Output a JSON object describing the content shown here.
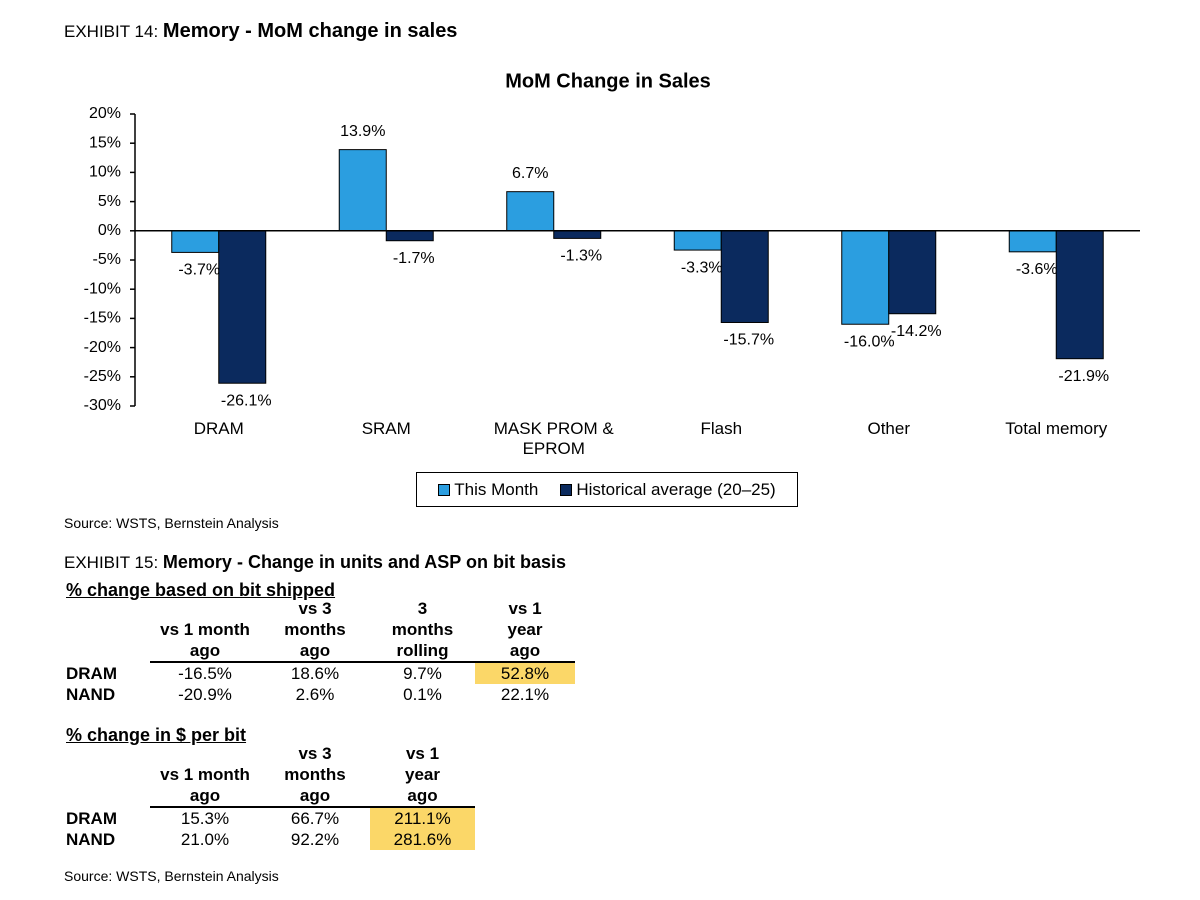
{
  "exhibit14": {
    "label": "EXHIBIT 14:",
    "title": "Memory - MoM change in sales",
    "source": "Source: WSTS, Bernstein Analysis"
  },
  "chart_data": {
    "type": "bar",
    "title": "MoM  Change in Sales",
    "categories": [
      "DRAM",
      "SRAM",
      "MASK PROM & EPROM",
      "Flash",
      "Other",
      "Total memory"
    ],
    "series": [
      {
        "name": "This Month",
        "color": "#2b9ee0",
        "values": [
          -3.7,
          13.9,
          6.7,
          -3.3,
          -16.0,
          -3.6
        ],
        "value_labels": [
          "-3.7%",
          "13.9%",
          "6.7%",
          "-3.3%",
          "-16.0%",
          "-3.6%"
        ]
      },
      {
        "name": "Historical average (20–25)",
        "color": "#0b2a5e",
        "values": [
          -26.1,
          -1.7,
          -1.3,
          -15.7,
          -14.2,
          -21.9
        ],
        "value_labels": [
          "-26.1%",
          "-1.7%",
          "-1.3%",
          "-15.7%",
          "-14.2%",
          "-21.9%"
        ]
      }
    ],
    "ylim": [
      -30,
      20
    ],
    "yticks": [
      {
        "value": -30,
        "label": "-30%"
      },
      {
        "value": -25,
        "label": "-25%"
      },
      {
        "value": -20,
        "label": "-20%"
      },
      {
        "value": -15,
        "label": "-15%"
      },
      {
        "value": -10,
        "label": "-10%"
      },
      {
        "value": -5,
        "label": "-5%"
      },
      {
        "value": 0,
        "label": "0%"
      },
      {
        "value": 5,
        "label": "5%"
      },
      {
        "value": 10,
        "label": "10%"
      },
      {
        "value": 15,
        "label": "15%"
      },
      {
        "value": 20,
        "label": "20%"
      }
    ],
    "legend": "bottom"
  },
  "exhibit15": {
    "label": "EXHIBIT 15:",
    "title": "Memory - Change in units and ASP on bit basis",
    "tables": [
      {
        "heading": "% change based on bit shipped",
        "columns": [
          [
            "vs 1 month",
            "ago"
          ],
          [
            "vs 3",
            "months",
            "ago"
          ],
          [
            "3",
            "months",
            "rolling"
          ],
          [
            "vs 1",
            "year",
            "ago"
          ]
        ],
        "rows": [
          [
            "DRAM",
            "-16.5%",
            "18.6%",
            "9.7%",
            "52.8%"
          ],
          [
            "NAND",
            "-20.9%",
            "2.6%",
            "0.1%",
            "22.1%"
          ]
        ]
      },
      {
        "heading": "% change in $ per bit",
        "columns": [
          [
            "vs 1 month",
            "ago"
          ],
          [
            "vs 3",
            "months",
            "ago"
          ],
          [
            "vs 1",
            "year",
            "ago"
          ]
        ],
        "rows": [
          [
            "DRAM",
            "15.3%",
            "66.7%",
            "211.1%"
          ],
          [
            "NAND",
            "21.0%",
            "92.2%",
            "281.6%"
          ]
        ]
      }
    ],
    "source": "Source: WSTS, Bernstein Analysis"
  }
}
